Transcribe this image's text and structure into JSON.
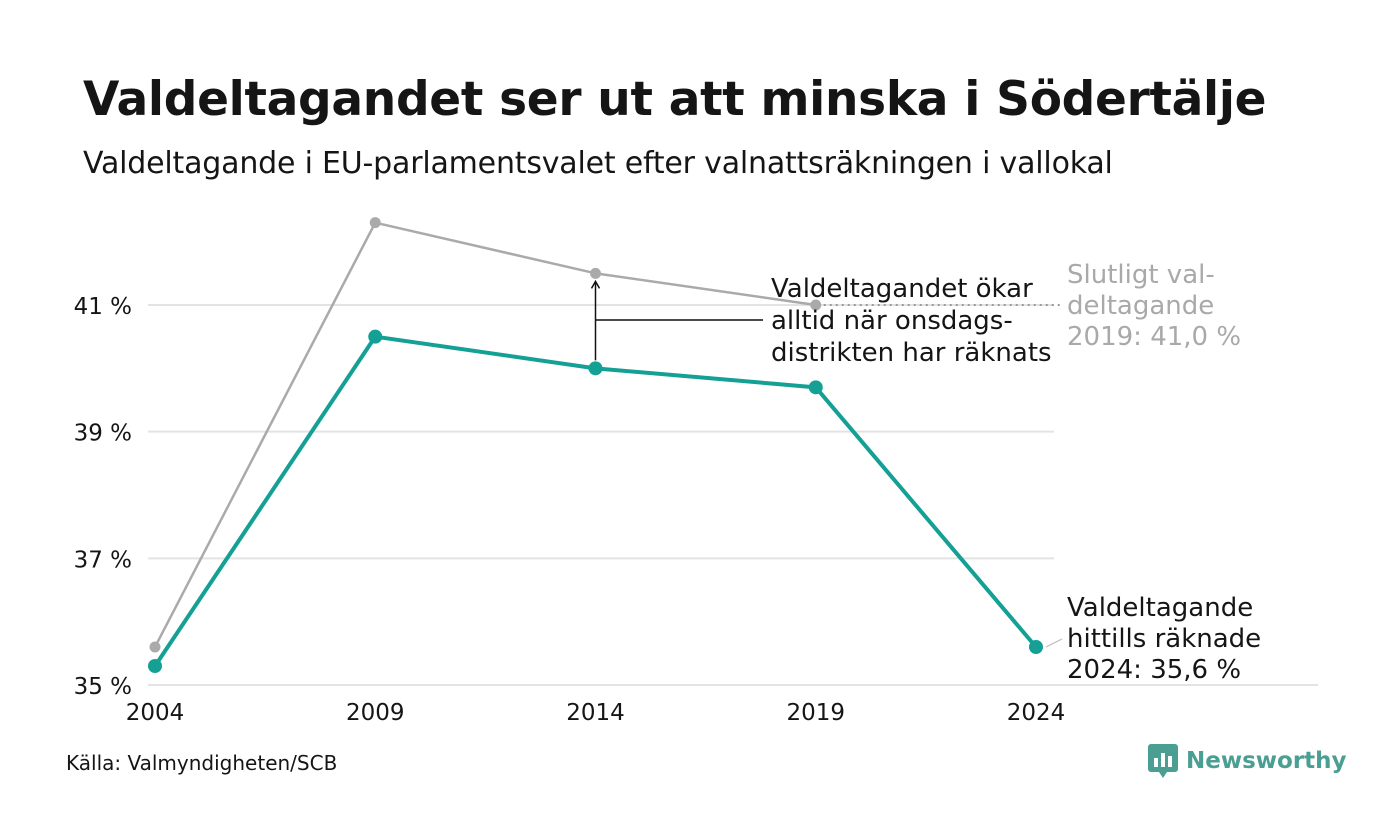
{
  "title": "Valdeltagandet ser ut att minska i Södertälje",
  "subtitle": "Valdeltagande i EU-parlamentsvalet efter valnattsräkningen i vallokal",
  "source": "Källa: Valmyndigheten/SCB",
  "brand": {
    "name": "Newsworthy",
    "icon": "newsworthy-logo-icon"
  },
  "colors": {
    "valnatt": "#14a095",
    "slutligt": "#aaaaaa",
    "grid": "#e3e3e3",
    "text": "#151515",
    "muted": "#a9a9a9"
  },
  "chart_data": {
    "type": "line",
    "x": [
      "2004",
      "2009",
      "2014",
      "2019",
      "2024"
    ],
    "series": [
      {
        "key": "slutligt",
        "values": [
          35.6,
          42.3,
          41.5,
          41.0,
          null
        ]
      },
      {
        "key": "valnatt",
        "values": [
          35.3,
          40.5,
          40.0,
          39.7,
          35.6
        ]
      }
    ],
    "yticks": [
      35,
      37,
      39,
      41
    ],
    "ytick_labels": [
      "35 %",
      "37 %",
      "39 %",
      "41 %"
    ],
    "ylim": [
      35,
      42.5
    ],
    "grid": true,
    "annotations": {
      "gap": [
        "Valdeltagandet ökar",
        "alltid när onsdags-",
        "distrikten har räknats"
      ],
      "final": [
        "Slutligt val-",
        "deltagande",
        "2019: 41,0 %"
      ],
      "current": [
        "Valdeltagande",
        "hittills räknade",
        "2024: 35,6 %"
      ]
    }
  }
}
